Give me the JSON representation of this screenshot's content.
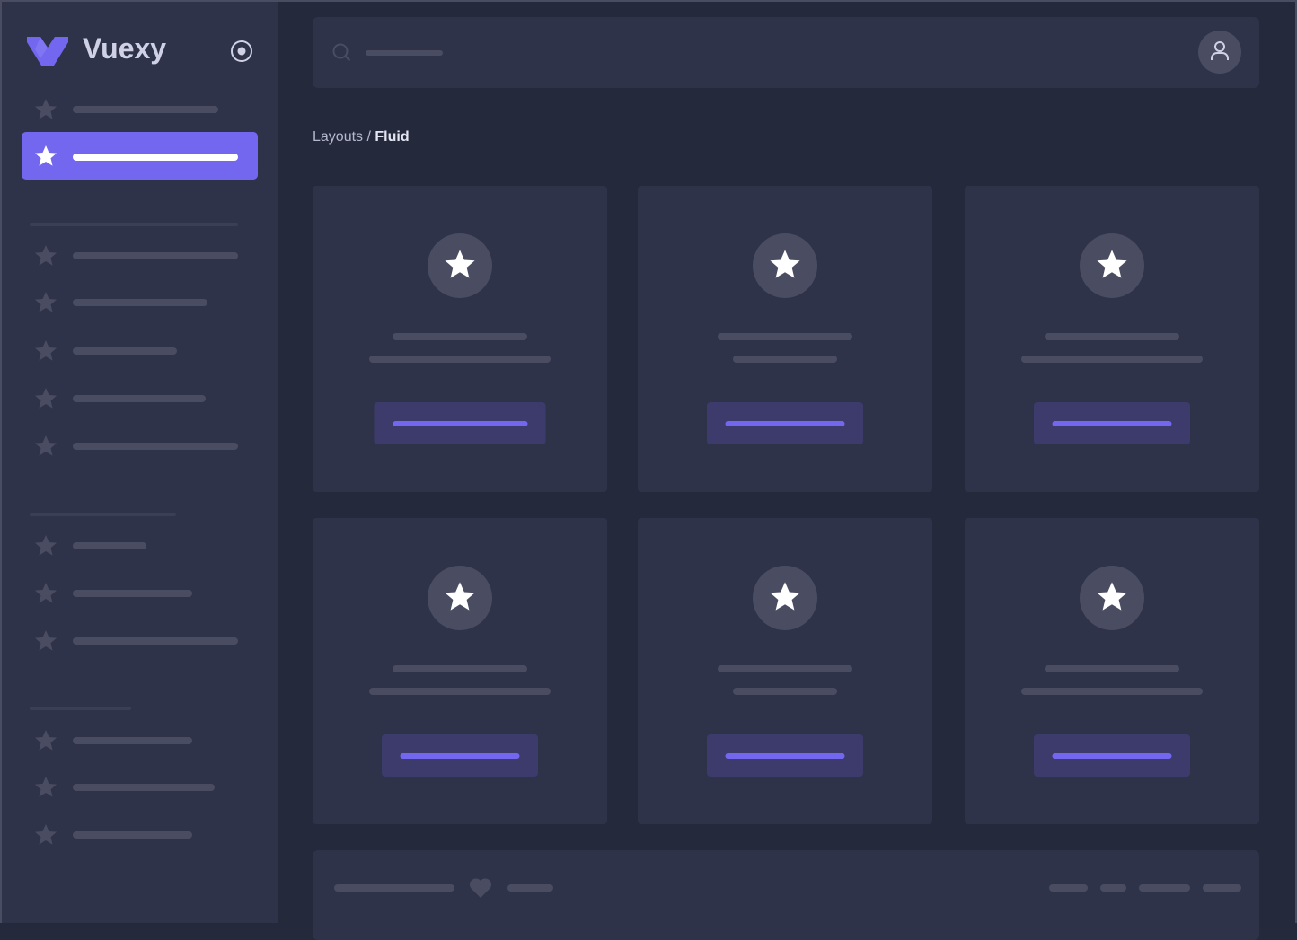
{
  "app": {
    "name": "Vuexy",
    "accent": "#7367f0"
  },
  "breadcrumb": {
    "parent": "Layouts",
    "separator": " / ",
    "current": "Fluid"
  },
  "icons": {
    "logo": "vuexy-logo-icon",
    "sidebar_toggle": "radio-circle-icon",
    "nav_item": "star-icon",
    "search": "search-icon",
    "user": "user-icon",
    "card": "star-icon",
    "footer": "heart-icon"
  },
  "colors": {
    "background": "#25293c",
    "surface": "#2f3349",
    "placeholder": "#4a4c62",
    "accent": "#7367f0",
    "button_bg": "#3d3b6b",
    "text": "#cfd1e6"
  }
}
